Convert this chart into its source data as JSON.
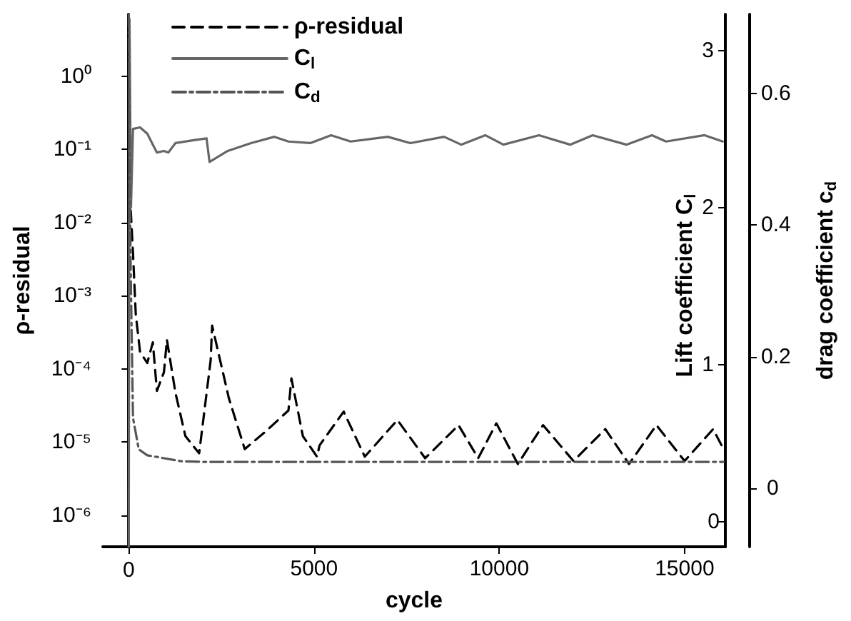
{
  "chart_data": {
    "type": "line",
    "xlabel": "cycle",
    "ylabel": "ρ-residual",
    "y2label": "Lift coefficient C$_{l}$",
    "y3label": "drag coefficient c$_{d}$",
    "xlim": [
      -700,
      16100
    ],
    "xticks": [
      0,
      5000,
      10000,
      15000
    ],
    "ylim": [
      3.7e-07,
      7
    ],
    "yticks": [
      {
        "value": 1e-06,
        "label": "10⁻⁶"
      },
      {
        "value": 1e-05,
        "label": "10⁻⁵"
      },
      {
        "value": 0.0001,
        "label": "10⁻⁴"
      },
      {
        "value": 0.001,
        "label": "10⁻³"
      },
      {
        "value": 0.01,
        "label": "10⁻²"
      },
      {
        "value": 0.1,
        "label": "10⁻¹"
      },
      {
        "value": 1,
        "label": "10⁰"
      }
    ],
    "y2lim": [
      -0.16,
      3.23
    ],
    "y2ticks": [
      0,
      1,
      2,
      3
    ],
    "y3lim": [
      -0.089,
      0.72
    ],
    "y3ticks": [
      0,
      0.2,
      0.4,
      0.6
    ],
    "log": "y",
    "grid": false,
    "legend": "top left",
    "marker": "none",
    "series": [
      {
        "name": "ρ-residual",
        "color": "#000000",
        "line_style": "dashed",
        "x": [
          0,
          40,
          115,
          190,
          305,
          500,
          650,
          760,
          950,
          1030,
          1260,
          1530,
          1900,
          2210,
          2250,
          2700,
          3130,
          3700,
          4310,
          4390,
          4700,
          5080,
          5150,
          5800,
          6370,
          7250,
          8000,
          8900,
          9430,
          9920,
          10500,
          11180,
          12000,
          12860,
          13500,
          14240,
          15000,
          15770,
          16050
        ],
        "values": [
          5,
          0.02,
          0.0038,
          0.00055,
          0.00017,
          0.00012,
          0.00023,
          5e-05,
          9e-05,
          0.00025,
          4.7e-05,
          1.2e-05,
          7e-06,
          0.00013,
          0.00039,
          4e-05,
          8e-06,
          1.4e-05,
          2.7e-05,
          7.4e-05,
          1.2e-05,
          6.3e-06,
          9e-06,
          2.6e-05,
          6.3e-06,
          2e-05,
          6e-06,
          1.7e-05,
          6e-06,
          1.8e-05,
          5e-06,
          1.7e-05,
          5.5e-06,
          1.5e-05,
          5e-06,
          1.7e-05,
          5.5e-06,
          1.5e-05,
          8e-06
        ]
      },
      {
        "name": "C$_{l}$",
        "color": "#666666",
        "line_style": "solid",
        "axis": "y2",
        "x": [
          0,
          20,
          60,
          115,
          305,
          500,
          760,
          950,
          1070,
          1260,
          1790,
          2100,
          2180,
          2670,
          3300,
          3930,
          4310,
          4900,
          5460,
          5990,
          6990,
          7600,
          8510,
          8970,
          9620,
          10110,
          11070,
          11910,
          12520,
          13430,
          14120,
          14500,
          15540,
          16030
        ],
        "values": [
          -0.16,
          3.2,
          2.0,
          2.5,
          2.51,
          2.47,
          2.35,
          2.36,
          2.35,
          2.41,
          2.43,
          2.44,
          2.29,
          2.36,
          2.41,
          2.45,
          2.42,
          2.41,
          2.46,
          2.42,
          2.45,
          2.41,
          2.45,
          2.4,
          2.46,
          2.4,
          2.46,
          2.4,
          2.46,
          2.4,
          2.46,
          2.42,
          2.46,
          2.42
        ]
      },
      {
        "name": "C$_{d}$",
        "color": "#555555",
        "line_style": "dashdot",
        "axis": "y3",
        "x": [
          0,
          20,
          60,
          115,
          270,
          500,
          1410,
          2000,
          3000,
          5000,
          7000,
          9000,
          11000,
          13000,
          15000,
          16050
        ],
        "values": [
          0.72,
          0.5,
          0.3,
          0.107,
          0.059,
          0.05,
          0.041,
          0.04,
          0.04,
          0.04,
          0.04,
          0.04,
          0.04,
          0.04,
          0.04,
          0.04
        ]
      }
    ]
  }
}
